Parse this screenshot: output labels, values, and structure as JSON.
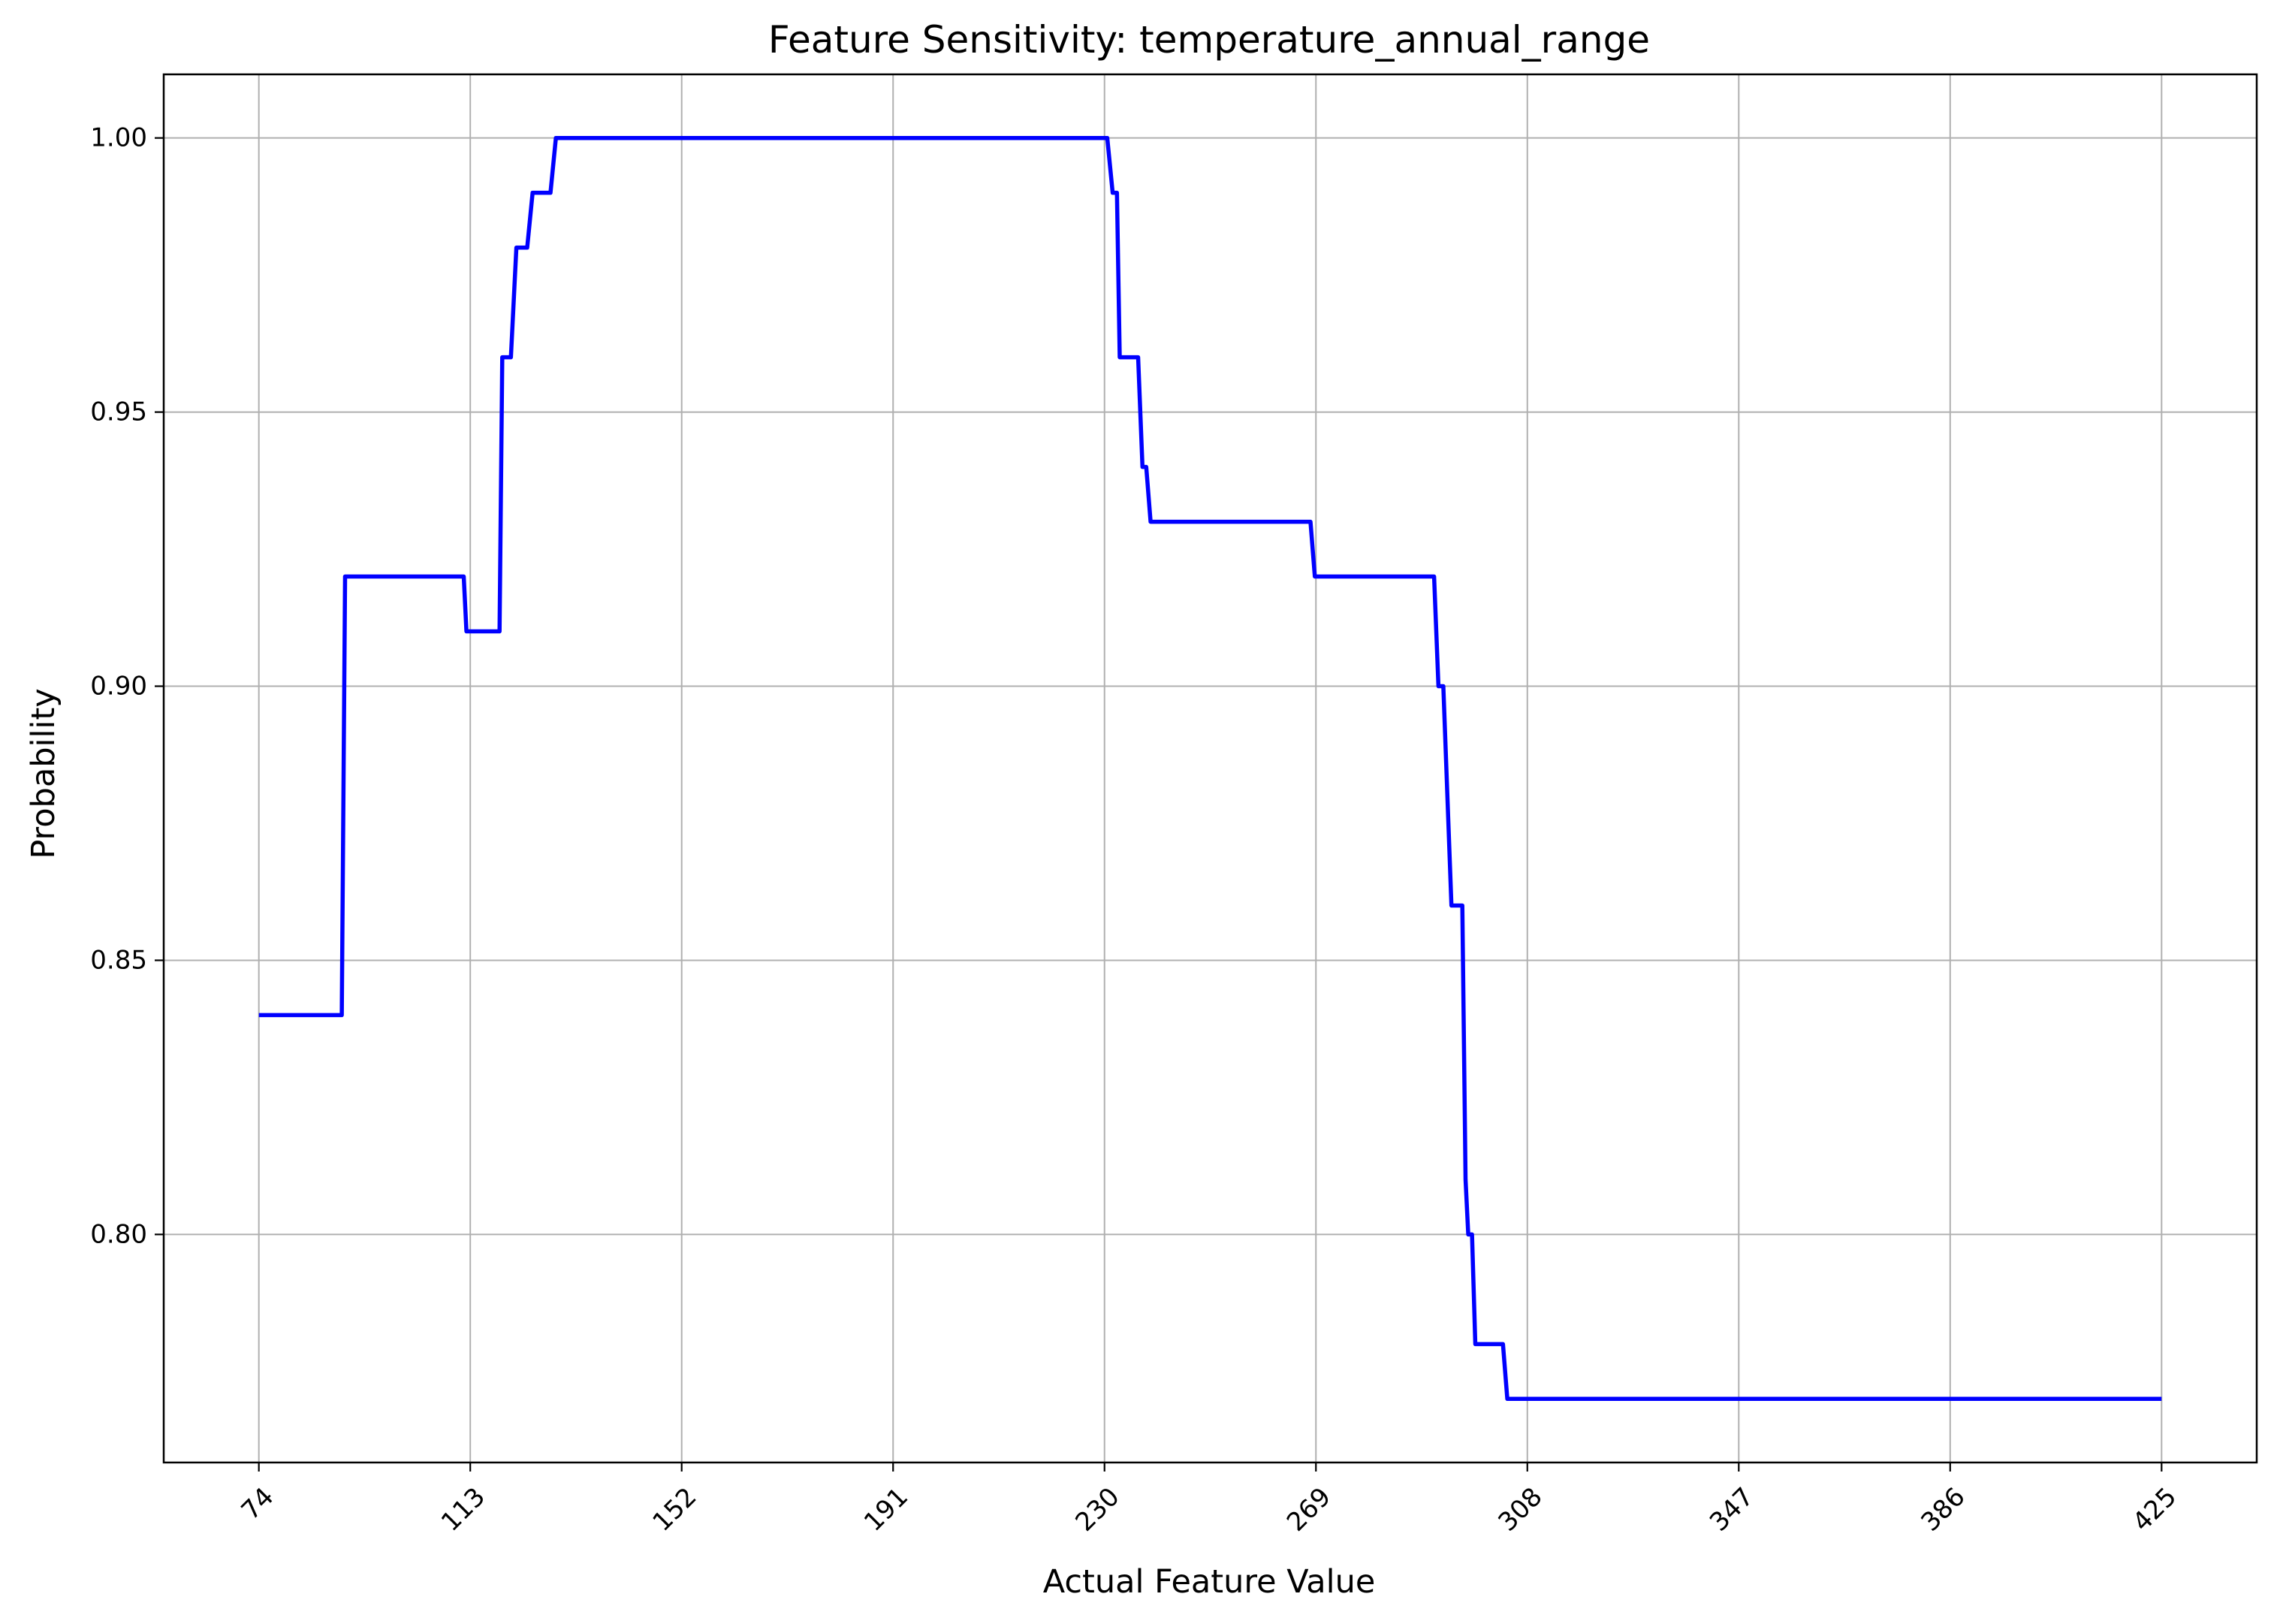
{
  "chart_data": {
    "type": "line",
    "title": "Feature Sensitivity: temperature_annual_range",
    "xlabel": "Actual Feature Value",
    "ylabel": "Probability",
    "xlim": [
      56.45,
      442.55
    ],
    "ylim": [
      0.7584,
      1.0116
    ],
    "x_ticks": [
      74,
      113,
      152,
      191,
      230,
      269,
      308,
      347,
      386,
      425
    ],
    "x_tick_labels": [
      "74",
      "113",
      "152",
      "191",
      "230",
      "269",
      "308",
      "347",
      "386",
      "425"
    ],
    "y_ticks": [
      0.8,
      0.85,
      0.9,
      0.95,
      1.0
    ],
    "y_tick_labels": [
      "0.80",
      "0.85",
      "0.90",
      "0.95",
      "1.00"
    ],
    "grid": true,
    "x_tick_rotation_deg": 45,
    "series": [
      {
        "color": "#0000ff",
        "x": [
          74,
          89.3,
          89.9,
          111.8,
          112.3,
          118.4,
          118.9,
          120.5,
          121.5,
          123.5,
          124.5,
          127.8,
          128.8,
          230.5,
          231.5,
          232.3,
          232.8,
          236.2,
          237.0,
          237.7,
          238.5,
          268.0,
          268.8,
          290.8,
          291.6,
          292.5,
          294.0,
          296.0,
          296.6,
          297.1,
          297.8,
          298.4,
          303.5,
          304.3,
          425
        ],
        "y": [
          0.84,
          0.84,
          0.92,
          0.92,
          0.91,
          0.91,
          0.96,
          0.96,
          0.98,
          0.98,
          0.99,
          0.99,
          1.0,
          1.0,
          0.99,
          0.99,
          0.96,
          0.96,
          0.94,
          0.94,
          0.93,
          0.93,
          0.92,
          0.92,
          0.9,
          0.9,
          0.86,
          0.86,
          0.81,
          0.8,
          0.8,
          0.78,
          0.78,
          0.77,
          0.77
        ]
      }
    ]
  }
}
